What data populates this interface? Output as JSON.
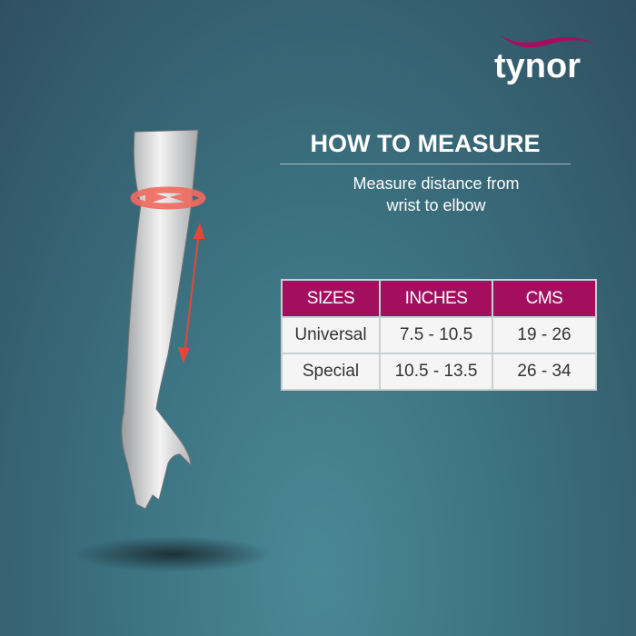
{
  "brand": {
    "logo_text": "tynor",
    "accent": "#a30f5e"
  },
  "heading": {
    "title": "HOW TO MEASURE",
    "subtitle_line1": "Measure distance from",
    "subtitle_line2": "wrist to elbow"
  },
  "table": {
    "headers": [
      "SIZES",
      "INCHES",
      "CMS"
    ],
    "rows": [
      [
        "Universal",
        "7.5 - 10.5",
        "19 - 26"
      ],
      [
        "Special",
        "10.5 - 13.5",
        "26 - 34"
      ]
    ]
  }
}
